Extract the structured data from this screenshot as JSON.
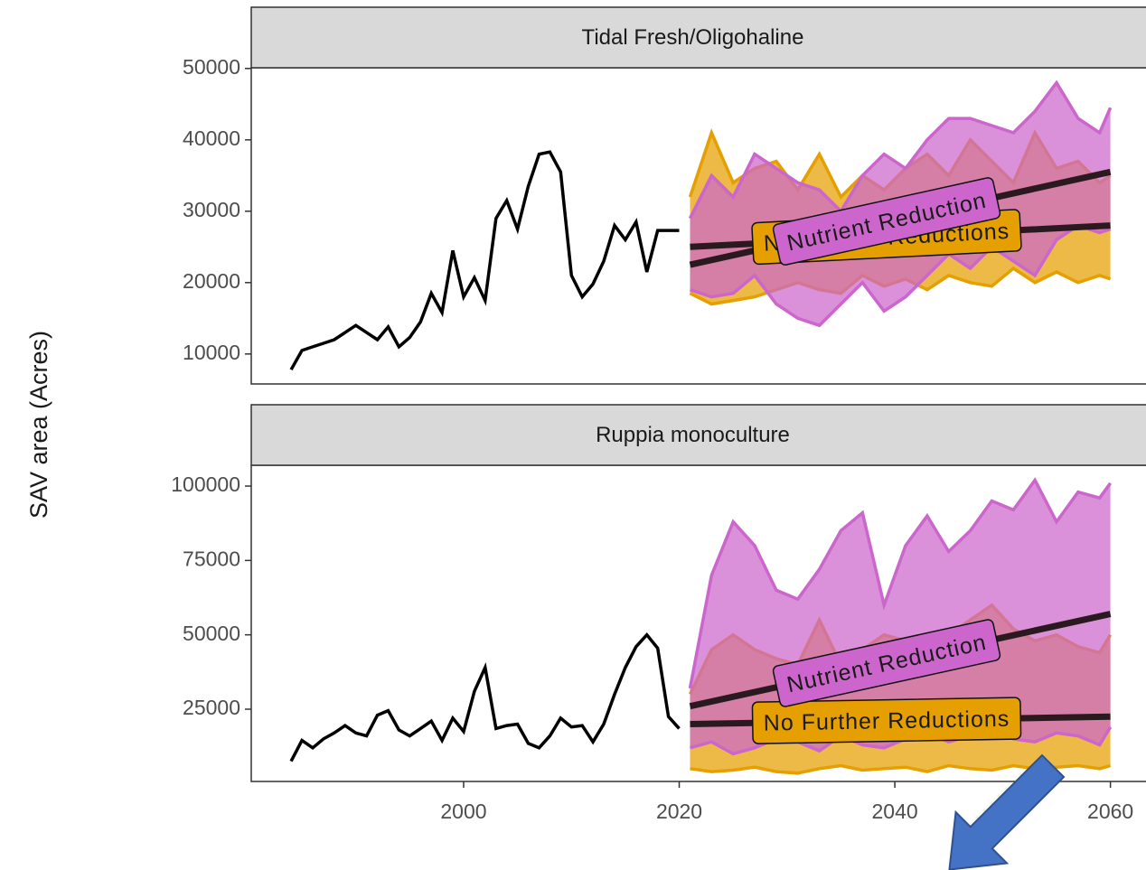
{
  "y_axis_label": "SAV area (Acres)",
  "chart_data": [
    {
      "type": "ribbon-line",
      "title": "Tidal Fresh/Oligohaline",
      "xlim": [
        1980.3,
        2063.3
      ],
      "ylim": [
        5800,
        50100
      ],
      "yticks": [
        10000,
        20000,
        30000,
        40000,
        50000
      ],
      "series": [
        {
          "color": "#000000",
          "x": [
            1984,
            1985,
            1986,
            1987,
            1988,
            1989,
            1990,
            1991,
            1992,
            1993,
            1994,
            1995,
            1996,
            1997,
            1998,
            1999,
            2000,
            2001,
            2002,
            2003,
            2004,
            2005,
            2006,
            2007,
            2008,
            2009,
            2010,
            2011,
            2012,
            2013,
            2014,
            2015,
            2016,
            2017,
            2018,
            2019,
            2020
          ],
          "values": [
            7800,
            10500,
            11000,
            11500,
            12000,
            13000,
            14000,
            13000,
            12000,
            13800,
            11000,
            12300,
            14500,
            18500,
            15800,
            24500,
            18000,
            20700,
            17500,
            29000,
            31500,
            27500,
            33500,
            38000,
            38300,
            35500,
            21000,
            18000,
            19800,
            23000,
            28000,
            26000,
            28500,
            21500,
            27300,
            27300,
            27300
          ]
        },
        {
          "name": "No Further Reductions",
          "color": "#E69F00",
          "x": [
            2021,
            2023,
            2025,
            2027,
            2029,
            2031,
            2033,
            2035,
            2037,
            2039,
            2041,
            2043,
            2045,
            2047,
            2049,
            2051,
            2053,
            2055,
            2057,
            2059,
            2060
          ],
          "lower": [
            18500,
            17000,
            17500,
            18000,
            19000,
            20000,
            19000,
            18500,
            21000,
            19500,
            20500,
            19000,
            21000,
            20000,
            19500,
            22000,
            20000,
            21500,
            20000,
            21000,
            20500
          ],
          "upper": [
            32000,
            41000,
            34000,
            36000,
            37000,
            33000,
            38000,
            32000,
            35000,
            33000,
            36000,
            38000,
            35000,
            40000,
            37000,
            34000,
            41000,
            36000,
            37000,
            34000,
            35000
          ],
          "trend_x": [
            2021,
            2060
          ],
          "trend": [
            25000,
            28000
          ]
        },
        {
          "name": "Nutrient Reduction",
          "color": "#CC66CC",
          "x": [
            2021,
            2023,
            2025,
            2027,
            2029,
            2031,
            2033,
            2035,
            2037,
            2039,
            2041,
            2043,
            2045,
            2047,
            2049,
            2051,
            2053,
            2055,
            2057,
            2059,
            2060
          ],
          "lower": [
            19000,
            18000,
            18500,
            21000,
            17000,
            15000,
            14000,
            17000,
            20000,
            16000,
            18000,
            21000,
            24000,
            22000,
            25000,
            23000,
            21000,
            26000,
            28000,
            27000,
            27500
          ],
          "upper": [
            29000,
            35000,
            32000,
            38000,
            36000,
            34000,
            33000,
            30000,
            35000,
            38000,
            36000,
            40000,
            43000,
            43000,
            42000,
            41000,
            44000,
            48000,
            43000,
            41000,
            44500
          ],
          "trend_x": [
            2021,
            2060
          ],
          "trend": [
            22500,
            35500
          ]
        }
      ]
    },
    {
      "type": "ribbon-line",
      "title": "Ruppia monoculture",
      "xlim": [
        1980.3,
        2063.3
      ],
      "xticks": [
        2000,
        2020,
        2040,
        2060
      ],
      "ylim": [
        700,
        107000
      ],
      "yticks": [
        25000,
        50000,
        75000,
        100000
      ],
      "series": [
        {
          "color": "#000000",
          "x": [
            1984,
            1985,
            1986,
            1987,
            1988,
            1989,
            1990,
            1991,
            1992,
            1993,
            1994,
            1995,
            1996,
            1997,
            1998,
            1999,
            2000,
            2001,
            2002,
            2003,
            2004,
            2005,
            2006,
            2007,
            2008,
            2009,
            2010,
            2011,
            2012,
            2013,
            2014,
            2015,
            2016,
            2017,
            2018,
            2019,
            2020
          ],
          "values": [
            7500,
            14500,
            12000,
            15000,
            17000,
            19500,
            17000,
            16000,
            23000,
            24500,
            18000,
            16000,
            18500,
            21000,
            14500,
            22000,
            17500,
            31000,
            39000,
            18500,
            19500,
            20000,
            13500,
            12000,
            16000,
            22000,
            19000,
            19500,
            14000,
            20000,
            30000,
            39000,
            46000,
            50000,
            45500,
            22500,
            18500
          ]
        },
        {
          "name": "No Further Reductions",
          "color": "#E69F00",
          "x": [
            2021,
            2023,
            2025,
            2027,
            2029,
            2031,
            2033,
            2035,
            2037,
            2039,
            2041,
            2043,
            2045,
            2047,
            2049,
            2051,
            2053,
            2055,
            2057,
            2059,
            2060
          ],
          "lower": [
            5000,
            4000,
            4500,
            5500,
            4000,
            3500,
            5000,
            6000,
            4500,
            5000,
            5500,
            4000,
            6000,
            5000,
            4500,
            6000,
            5000,
            5500,
            6000,
            5000,
            6000
          ],
          "upper": [
            30000,
            45000,
            50000,
            45000,
            42000,
            40000,
            55000,
            40000,
            45000,
            50000,
            48000,
            42000,
            50000,
            55000,
            60000,
            52000,
            48000,
            50000,
            46000,
            44000,
            50000
          ],
          "trend_x": [
            2021,
            2060
          ],
          "trend": [
            20000,
            22500
          ]
        },
        {
          "name": "Nutrient Reduction",
          "color": "#CC66CC",
          "x": [
            2021,
            2023,
            2025,
            2027,
            2029,
            2031,
            2033,
            2035,
            2037,
            2039,
            2041,
            2043,
            2045,
            2047,
            2049,
            2051,
            2053,
            2055,
            2057,
            2059,
            2060
          ],
          "lower": [
            12000,
            14000,
            10000,
            12000,
            15000,
            14000,
            11000,
            16000,
            13000,
            12000,
            15000,
            17000,
            14000,
            16000,
            18000,
            15000,
            14000,
            17000,
            16000,
            13000,
            19000
          ],
          "upper": [
            32000,
            70000,
            88000,
            80000,
            65000,
            62000,
            72000,
            85000,
            91000,
            60000,
            80000,
            90000,
            78000,
            85000,
            95000,
            92000,
            102000,
            88000,
            98000,
            96000,
            101000
          ],
          "trend_x": [
            2021,
            2060
          ],
          "trend": [
            26000,
            57000
          ]
        }
      ]
    }
  ]
}
